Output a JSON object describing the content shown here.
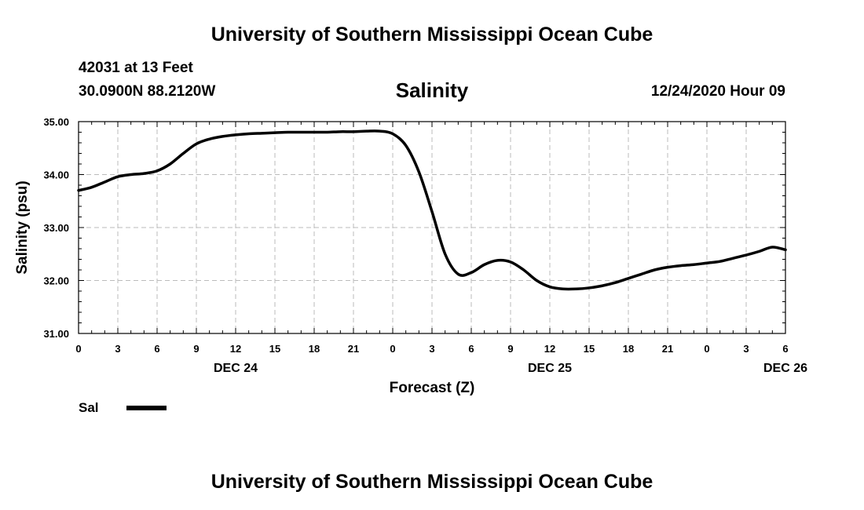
{
  "header": {
    "title": "University of Southern Mississippi Ocean Cube",
    "station": "42031 at 13 Feet",
    "coords": "30.0900N 88.2120W",
    "parameter": "Salinity",
    "datetime": "12/24/2020 Hour 09"
  },
  "footer": {
    "title": "University of Southern Mississippi Ocean Cube"
  },
  "legend": {
    "label": "Sal",
    "color": "#000000"
  },
  "chart_data": {
    "type": "line",
    "title": "Salinity",
    "xlabel": "Forecast (Z)",
    "ylabel": "Salinity (psu)",
    "grid": true,
    "xlim": [
      0,
      54
    ],
    "ylim": [
      31.0,
      35.0
    ],
    "yticks": [
      "31.00",
      "32.00",
      "33.00",
      "34.00",
      "35.00"
    ],
    "xtick_labels": [
      "0",
      "3",
      "6",
      "9",
      "12",
      "15",
      "18",
      "21",
      "0",
      "3",
      "6",
      "9",
      "12",
      "15",
      "18",
      "21",
      "0",
      "3",
      "6"
    ],
    "date_labels": [
      {
        "label": "DEC 24",
        "hour": 12
      },
      {
        "label": "DEC 25",
        "hour": 36
      },
      {
        "label": "DEC 26",
        "hour": 54
      }
    ],
    "series": [
      {
        "name": "Sal",
        "color": "#000000",
        "x": [
          0,
          1,
          2,
          3,
          4,
          5,
          6,
          7,
          8,
          9,
          10,
          11,
          12,
          13,
          14,
          15,
          16,
          17,
          18,
          19,
          20,
          21,
          22,
          23,
          24,
          25,
          26,
          27,
          28,
          29,
          30,
          31,
          32,
          33,
          34,
          35,
          36,
          37,
          38,
          39,
          40,
          41,
          42,
          43,
          44,
          45,
          46,
          47,
          48,
          49,
          50,
          51,
          52,
          53,
          54
        ],
        "values": [
          33.7,
          33.76,
          33.86,
          33.96,
          34.0,
          34.02,
          34.07,
          34.2,
          34.4,
          34.58,
          34.67,
          34.72,
          34.75,
          34.77,
          34.78,
          34.79,
          34.8,
          34.8,
          34.8,
          34.8,
          34.81,
          34.81,
          34.82,
          34.82,
          34.77,
          34.55,
          34.05,
          33.3,
          32.5,
          32.12,
          32.15,
          32.3,
          32.38,
          32.35,
          32.2,
          32.0,
          31.88,
          31.84,
          31.84,
          31.86,
          31.9,
          31.96,
          32.04,
          32.12,
          32.2,
          32.25,
          32.28,
          32.3,
          32.33,
          32.36,
          32.42,
          32.48,
          32.55,
          32.63,
          32.58
        ]
      }
    ]
  }
}
